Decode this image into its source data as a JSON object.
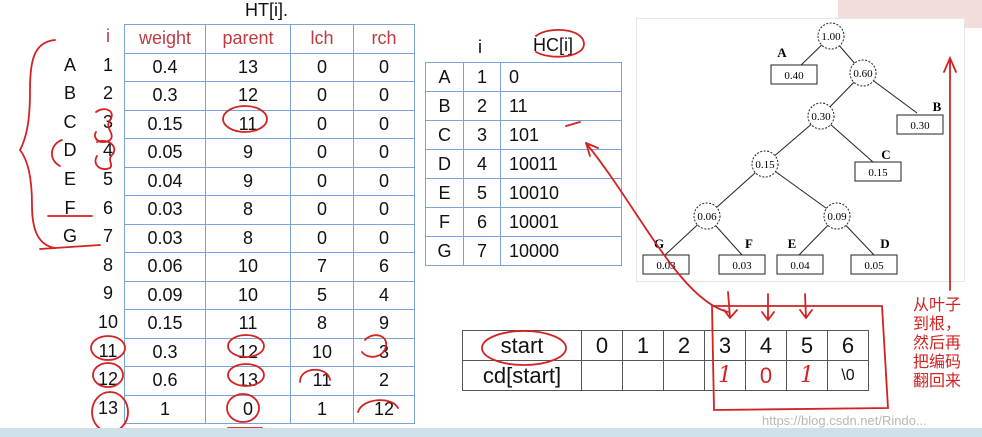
{
  "ht": {
    "title": "HT[i].",
    "headers": [
      "weight",
      "parent",
      "lch",
      "rch"
    ],
    "letters": [
      "A",
      "B",
      "C",
      "D",
      "E",
      "F",
      "G"
    ],
    "indices": [
      "i",
      "1",
      "2",
      "3",
      "4",
      "5",
      "6",
      "7",
      "8",
      "9",
      "10",
      "11",
      "12",
      "13"
    ],
    "rows": [
      [
        "0.4",
        "13",
        "0",
        "0"
      ],
      [
        "0.3",
        "12",
        "0",
        "0"
      ],
      [
        "0.15",
        "11",
        "0",
        "0"
      ],
      [
        "0.05",
        "9",
        "0",
        "0"
      ],
      [
        "0.04",
        "9",
        "0",
        "0"
      ],
      [
        "0.03",
        "8",
        "0",
        "0"
      ],
      [
        "0.03",
        "8",
        "0",
        "0"
      ],
      [
        "0.06",
        "10",
        "7",
        "6"
      ],
      [
        "0.09",
        "10",
        "5",
        "4"
      ],
      [
        "0.15",
        "11",
        "8",
        "9"
      ],
      [
        "0.3",
        "12",
        "10",
        "3"
      ],
      [
        "0.6",
        "13",
        "11",
        "2"
      ],
      [
        "1",
        "0",
        "1",
        "12"
      ]
    ]
  },
  "hc": {
    "i_label": "i",
    "title": "HC[i]",
    "rows": [
      [
        "A",
        "1",
        "0"
      ],
      [
        "B",
        "2",
        "11"
      ],
      [
        "C",
        "3",
        "101"
      ],
      [
        "D",
        "4",
        "10011"
      ],
      [
        "E",
        "5",
        "10010"
      ],
      [
        "F",
        "6",
        "10001"
      ],
      [
        "G",
        "7",
        "10000"
      ]
    ]
  },
  "tree": {
    "nodes": [
      {
        "id": "root",
        "label": "1.00"
      },
      {
        "id": "n060",
        "label": "0.60"
      },
      {
        "id": "n030",
        "label": "0.30"
      },
      {
        "id": "n015",
        "label": "0.15"
      },
      {
        "id": "n006",
        "label": "0.06"
      },
      {
        "id": "n009",
        "label": "0.09"
      }
    ],
    "leaves": [
      {
        "id": "A",
        "name": "A",
        "value": "0.40"
      },
      {
        "id": "B",
        "name": "B",
        "value": "0.30"
      },
      {
        "id": "C",
        "name": "C",
        "value": "0.15"
      },
      {
        "id": "G",
        "name": "G",
        "value": "0.03"
      },
      {
        "id": "F",
        "name": "F",
        "value": "0.03"
      },
      {
        "id": "E",
        "name": "E",
        "value": "0.04"
      },
      {
        "id": "D",
        "name": "D",
        "value": "0.05"
      }
    ]
  },
  "cd": {
    "start_label": "start",
    "cd_label": "cd[start]",
    "indices": [
      "0",
      "1",
      "2",
      "3",
      "4",
      "5",
      "6"
    ],
    "values": [
      "",
      "",
      "",
      "1",
      "0",
      "1",
      "\\0"
    ]
  },
  "note": {
    "lines": [
      "从叶子",
      "到根，",
      "然后再",
      "把编码",
      "翻回来"
    ]
  },
  "watermark": "https://blog.csdn.net/Rindo...",
  "colors": {
    "annotation": "#d32222",
    "grid": "#7aa3d6",
    "header": "#c0393f"
  }
}
